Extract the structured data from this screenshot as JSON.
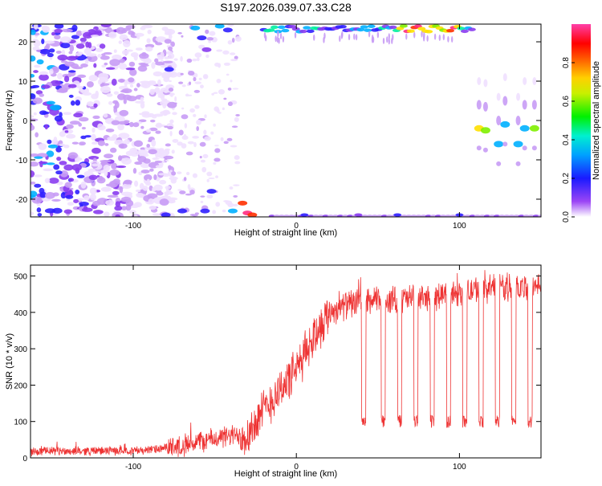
{
  "title": "S197.2026.039.07.33.C28",
  "chart_data": [
    {
      "type": "heatmap",
      "xlabel": "Height of straight line (km)",
      "ylabel": "Frequency (Hz)",
      "xlim": [
        -163,
        150
      ],
      "ylim": [
        -24.5,
        24.5
      ],
      "x_ticks": [
        -100,
        0,
        100
      ],
      "y_ticks": [
        -20,
        -10,
        0,
        10,
        20
      ],
      "colorbar": {
        "label": "Normalized spectral amplitude",
        "range": [
          0,
          1
        ],
        "ticks": [
          0.0,
          0.2,
          0.4,
          0.6,
          0.8
        ],
        "colors": [
          "#ffffff",
          "#9b45f5",
          "#1a1aff",
          "#00e0ff",
          "#00f000",
          "#f0f000",
          "#ff7a00",
          "#ff0000",
          "#ff3fa8"
        ]
      }
    },
    {
      "type": "line",
      "xlabel": "Height of straight line (km)",
      "ylabel": "SNR (10 * v/v)",
      "xlim": [
        -163,
        150
      ],
      "ylim": [
        0,
        530
      ],
      "x_ticks": [
        -100,
        0,
        100
      ],
      "y_ticks": [
        0,
        100,
        200,
        300,
        400,
        500
      ],
      "line_color": "#ee3333",
      "trend_x": [
        -163,
        -100,
        -80,
        -60,
        -40,
        -30,
        -20,
        -10,
        0,
        10,
        20,
        30,
        40,
        60,
        80,
        100,
        120,
        150
      ],
      "trend_y": [
        18,
        20,
        25,
        45,
        60,
        65,
        130,
        190,
        240,
        330,
        400,
        420,
        430,
        435,
        440,
        455,
        470,
        470
      ],
      "dips_x": [
        40,
        52,
        62,
        72,
        82,
        92,
        102,
        112,
        122,
        132,
        142
      ],
      "dip_level": 100
    }
  ]
}
